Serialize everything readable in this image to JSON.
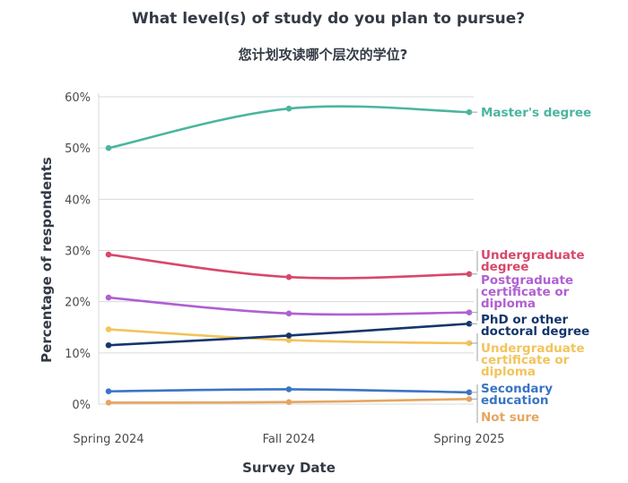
{
  "chart_data": {
    "type": "line",
    "title": "What level(s) of study do you plan to pursue?",
    "subtitle": "您计划攻读哪个层次的学位?",
    "xlabel": "Survey Date",
    "ylabel": "Percentage of respondents",
    "categories": [
      "Spring 2024",
      "Fall 2024",
      "Spring 2025"
    ],
    "ylim": [
      0,
      60
    ],
    "yticks": [
      0,
      10,
      20,
      30,
      40,
      50,
      60
    ],
    "ytick_labels": [
      "0%",
      "10%",
      "20%",
      "30%",
      "40%",
      "50%",
      "60%"
    ],
    "grid": true,
    "series": [
      {
        "name": "Master's degree",
        "label_lines": [
          "Master's degree"
        ],
        "color": "#4bb59f",
        "values": [
          50.0,
          57.7,
          57.0
        ]
      },
      {
        "name": "Undergraduate degree",
        "label_lines": [
          "Undergraduate",
          "degree"
        ],
        "color": "#d9476b",
        "values": [
          29.2,
          24.8,
          25.4
        ]
      },
      {
        "name": "Postgraduate certificate or diploma",
        "label_lines": [
          "Postgraduate",
          "certificate or",
          "diploma"
        ],
        "color": "#b05fd3",
        "values": [
          20.8,
          17.7,
          17.9
        ]
      },
      {
        "name": "PhD or other doctoral degree",
        "label_lines": [
          "PhD or other",
          "doctoral degree"
        ],
        "color": "#15366b",
        "values": [
          11.5,
          13.4,
          15.7
        ]
      },
      {
        "name": "Undergraduate certificate or diploma",
        "label_lines": [
          "Undergraduate",
          "certificate or",
          "diploma"
        ],
        "color": "#f2c45c",
        "values": [
          14.6,
          12.5,
          11.9
        ]
      },
      {
        "name": "Secondary education",
        "label_lines": [
          "Secondary",
          "education"
        ],
        "color": "#3a74c4",
        "values": [
          2.5,
          2.9,
          2.3
        ]
      },
      {
        "name": "Not sure",
        "label_lines": [
          "Not sure"
        ],
        "color": "#e6a660",
        "values": [
          0.3,
          0.4,
          1.0
        ]
      }
    ]
  }
}
